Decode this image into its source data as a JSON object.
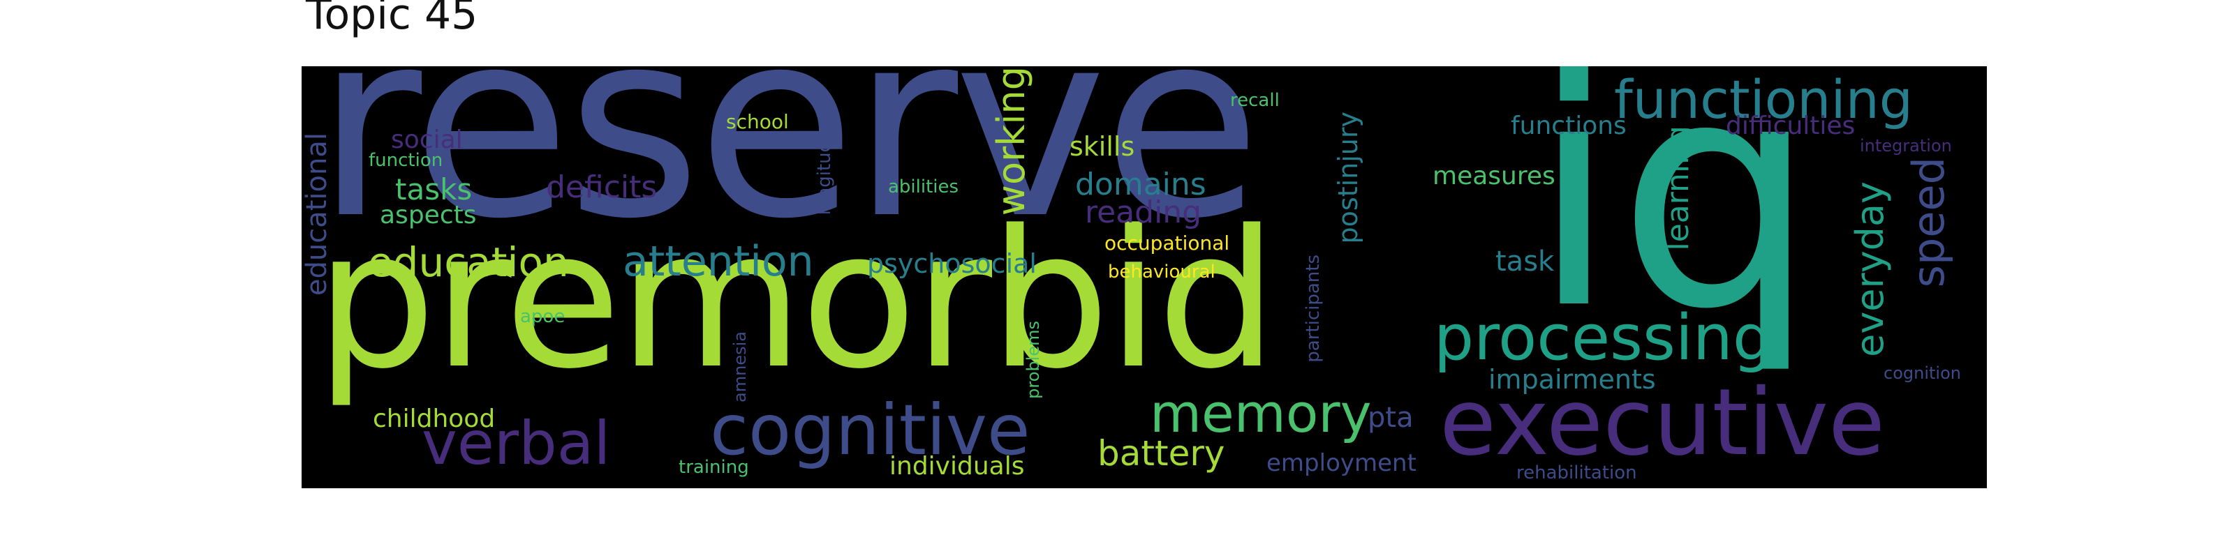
{
  "title": "Topic 45",
  "words": {
    "reserve": "reserve",
    "iq": "iq",
    "premorbid": "premorbid",
    "executive": "executive",
    "cognitive": "cognitive",
    "processing": "processing",
    "functioning": "functioning",
    "memory": "memory",
    "verbal": "verbal",
    "attention": "attention",
    "education": "education",
    "working": "working",
    "speed": "speed",
    "everyday": "everyday",
    "battery": "battery",
    "domains": "domains",
    "deficits": "deficits",
    "reading": "reading",
    "tasks": "tasks",
    "psychosocial": "psychosocial",
    "impairments": "impairments",
    "learning": "learning",
    "task": "task",
    "functions": "functions",
    "difficulties": "difficulties",
    "measures": "measures",
    "skills": "skills",
    "social": "social",
    "aspects": "aspects",
    "childhood": "childhood",
    "individuals": "individuals",
    "employment": "employment",
    "pta": "pta",
    "postinjury": "postinjury",
    "educational": "educational",
    "function": "function",
    "school": "school",
    "abilities": "abilities",
    "recall": "recall",
    "occupational": "occupational",
    "behavioural": "behavioural",
    "longitudinal": "longitudinal",
    "participants": "participants",
    "integration": "integration",
    "cognition": "cognition",
    "rehabilitation": "rehabilitation",
    "training": "training",
    "apoe": "apoe",
    "amnesia": "amnesia",
    "problems": "problems"
  },
  "colors": {
    "background": "#000000",
    "blue": "#3e4c8a",
    "lime": "#a5db36",
    "teal": "#1fa187",
    "teal_dark": "#277f8e",
    "purple": "#472d7b",
    "green": "#4ac16d",
    "yellow": "#fde725"
  }
}
